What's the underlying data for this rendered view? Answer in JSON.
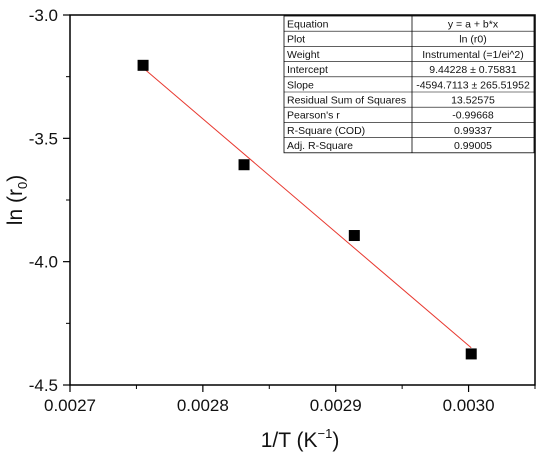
{
  "chart_data": {
    "type": "scatter",
    "xlabel": {
      "base": "1/T (K",
      "sup": "−1",
      "tail": ")"
    },
    "ylabel": {
      "base": "ln (r",
      "sub": "0",
      "tail": ")"
    },
    "xlim": [
      0.0027,
      0.00305
    ],
    "ylim": [
      -4.5,
      -3.0
    ],
    "xticks": [
      0.0027,
      0.0028,
      0.0029,
      0.003
    ],
    "xtick_labels": [
      "0.0027",
      "0.0028",
      "0.0029",
      "0.0030"
    ],
    "yticks": [
      -4.5,
      -4.0,
      -3.5,
      -3.0
    ],
    "ytick_labels": [
      "-4.5",
      "-4.0",
      "-3.5",
      "-3.0"
    ],
    "grid": false,
    "colors": {
      "points": "#000000",
      "fit_line": "#e8382f"
    },
    "points": {
      "x": [
        0.002755,
        0.002831,
        0.002914,
        0.003002
      ],
      "y": [
        -3.204,
        -3.607,
        -3.894,
        -4.374
      ]
    },
    "fit_line": {
      "x": [
        0.002755,
        0.003002
      ],
      "y": [
        -3.2143,
        -4.3491
      ]
    },
    "stats_table": {
      "position": "top-right",
      "rows": [
        [
          "Equation",
          "y = a + b*x"
        ],
        [
          "Plot",
          "ln (r0)"
        ],
        [
          "Weight",
          "Instrumental (=1/ei^2)"
        ],
        [
          "Intercept",
          "9.44228 ± 0.75831"
        ],
        [
          "Slope",
          "-4594.7113 ± 265.51952"
        ],
        [
          "Residual Sum of Squares",
          "13.52575"
        ],
        [
          "Pearson's r",
          "-0.99668"
        ],
        [
          "R-Square (COD)",
          "0.99337"
        ],
        [
          "Adj. R-Square",
          "0.99005"
        ]
      ]
    }
  }
}
